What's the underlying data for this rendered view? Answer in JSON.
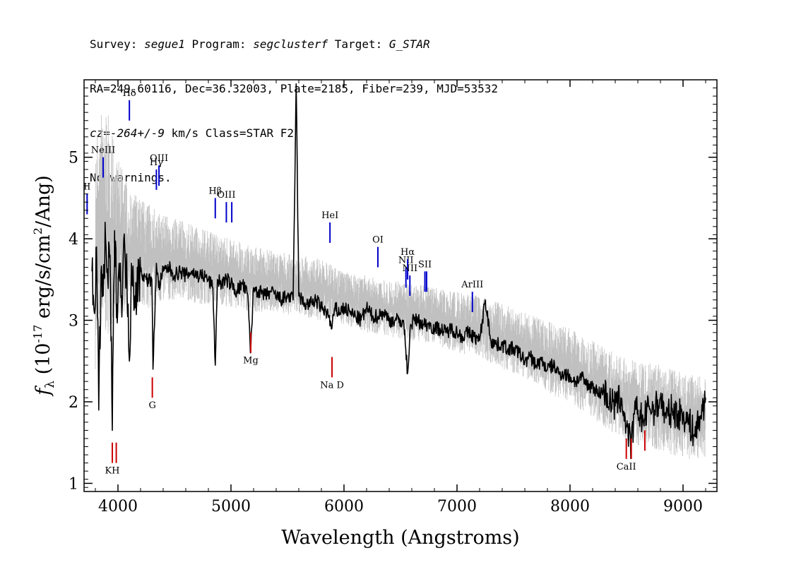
{
  "header": {
    "survey_label": "Survey: ",
    "survey_value": "segue1",
    "program_label": " Program: ",
    "program_value": "segclusterf",
    "target_label": " Target: ",
    "target_value": "G_STAR",
    "line2": "RA=249.60116, Dec=36.32003, Plate=2185, Fiber=239, MJD=53532",
    "cz_label": "cz=",
    "cz_value": "-264+/-9",
    "cz_rest": " km/s Class=STAR F2",
    "line4": "No warnings."
  },
  "chart_data": {
    "type": "line",
    "xlabel": "Wavelength (Angstroms)",
    "ylabel_prefix": "f",
    "ylabel_sub": "λ",
    "ylabel_main": " (10",
    "ylabel_exp": "-17",
    "ylabel_mid": " erg/s/cm",
    "ylabel_exp2": "2",
    "ylabel_end": "/Ang)",
    "xlim": [
      3700,
      9300
    ],
    "ylim": [
      0.9,
      5.95
    ],
    "xticks": [
      4000,
      5000,
      6000,
      7000,
      8000,
      9000
    ],
    "yticks": [
      1,
      2,
      3,
      4,
      5
    ],
    "series": [
      {
        "role": "error_band",
        "color": "#c0c0c0",
        "x": [
          3800,
          3850,
          3900,
          3950,
          4000,
          4100,
          4200,
          4300,
          4400,
          4500,
          4600,
          4700,
          4800,
          4900,
          5000,
          5200,
          5400,
          5600,
          5800,
          6000,
          6200,
          6400,
          6600,
          6800,
          7000,
          7200,
          7400,
          7600,
          7800,
          8000,
          8200,
          8400,
          8600,
          8800,
          9000,
          9200
        ],
        "y_low": [
          2.4,
          2.6,
          2.8,
          2.9,
          3.0,
          3.1,
          3.15,
          3.15,
          3.2,
          3.25,
          3.25,
          3.2,
          3.2,
          3.2,
          3.15,
          3.1,
          3.1,
          3.05,
          3.0,
          2.95,
          2.85,
          2.8,
          2.75,
          2.7,
          2.6,
          2.55,
          2.4,
          2.3,
          2.1,
          2.0,
          1.8,
          1.6,
          1.45,
          1.4,
          1.3,
          1.3
        ],
        "y_high": [
          5.2,
          5.6,
          5.6,
          5.3,
          5.0,
          4.6,
          4.5,
          4.4,
          4.3,
          4.25,
          4.2,
          4.15,
          4.1,
          4.05,
          4.0,
          3.9,
          3.85,
          3.8,
          3.75,
          3.6,
          3.55,
          3.5,
          3.45,
          3.4,
          3.35,
          3.3,
          3.2,
          3.1,
          3.0,
          2.9,
          2.75,
          2.6,
          2.5,
          2.45,
          2.35,
          2.3
        ]
      },
      {
        "role": "flux",
        "color": "#000000",
        "x": [
          3770,
          3790,
          3810,
          3830,
          3850,
          3870,
          3890,
          3910,
          3930,
          3950,
          3970,
          3990,
          4010,
          4030,
          4060,
          4090,
          4101,
          4120,
          4150,
          4200,
          4250,
          4300,
          4310,
          4340,
          4360,
          4400,
          4450,
          4500,
          4550,
          4600,
          4650,
          4700,
          4750,
          4800,
          4840,
          4861,
          4880,
          4920,
          4960,
          5000,
          5050,
          5100,
          5150,
          5172,
          5200,
          5250,
          5300,
          5350,
          5400,
          5450,
          5500,
          5550,
          5577,
          5600,
          5650,
          5700,
          5750,
          5800,
          5850,
          5893,
          5920,
          5950,
          6000,
          6050,
          6100,
          6150,
          6200,
          6250,
          6300,
          6350,
          6400,
          6450,
          6500,
          6530,
          6563,
          6590,
          6620,
          6650,
          6700,
          6750,
          6800,
          6850,
          6900,
          6950,
          7000,
          7050,
          7100,
          7150,
          7200,
          7250,
          7300,
          7350,
          7400,
          7450,
          7500,
          7550,
          7600,
          7650,
          7700,
          7750,
          7800,
          7850,
          7900,
          7950,
          8000,
          8050,
          8100,
          8150,
          8200,
          8250,
          8300,
          8350,
          8400,
          8450,
          8500,
          8542,
          8570,
          8600,
          8650,
          8700,
          8750,
          8800,
          8850,
          8900,
          8950,
          9000,
          9050,
          9100,
          9150,
          9200
        ],
        "y": [
          3.6,
          3.1,
          3.9,
          1.9,
          3.6,
          3.3,
          4.0,
          3.5,
          3.8,
          1.65,
          4.1,
          3.2,
          3.7,
          3.3,
          3.9,
          3.2,
          2.5,
          3.7,
          3.3,
          3.6,
          3.5,
          3.5,
          2.4,
          3.7,
          3.4,
          3.6,
          3.65,
          3.55,
          3.6,
          3.55,
          3.6,
          3.55,
          3.55,
          3.5,
          3.4,
          2.45,
          3.5,
          3.45,
          3.5,
          3.45,
          3.35,
          3.45,
          3.3,
          2.6,
          3.4,
          3.35,
          3.3,
          3.35,
          3.3,
          3.25,
          3.3,
          3.25,
          5.9,
          3.3,
          3.2,
          3.2,
          3.25,
          3.15,
          3.1,
          2.9,
          3.15,
          3.1,
          3.15,
          3.1,
          3.05,
          3.0,
          3.15,
          3.05,
          3.05,
          3.1,
          3.0,
          3.0,
          3.0,
          2.95,
          2.35,
          2.95,
          3.0,
          3.0,
          2.95,
          2.95,
          2.9,
          2.9,
          2.85,
          2.9,
          2.85,
          2.8,
          2.85,
          2.8,
          2.75,
          3.25,
          2.75,
          2.7,
          2.7,
          2.65,
          2.65,
          2.6,
          2.5,
          2.55,
          2.45,
          2.5,
          2.4,
          2.45,
          2.35,
          2.35,
          2.3,
          2.25,
          2.3,
          2.2,
          2.2,
          2.1,
          2.15,
          2.0,
          1.95,
          2.05,
          1.7,
          1.45,
          1.85,
          1.9,
          1.75,
          1.95,
          1.9,
          2.05,
          1.8,
          1.9,
          1.85,
          1.85,
          1.75,
          1.6,
          1.8,
          2.05
        ]
      }
    ],
    "lines": [
      {
        "label": "Hδ",
        "x": 4101,
        "y_bottom": 5.45,
        "y_top": 5.7,
        "color": "#0000cc"
      },
      {
        "label": "NeIII",
        "x": 3869,
        "y_bottom": 4.75,
        "y_top": 5.0,
        "color": "#0000cc"
      },
      {
        "label": "Hγ",
        "x": 4340,
        "y_bottom": 4.6,
        "y_top": 4.85,
        "color": "#0000cc"
      },
      {
        "label": "OIII",
        "x": 4363,
        "y_bottom": 4.65,
        "y_top": 4.9,
        "color": "#0000cc"
      },
      {
        "label": "II",
        "x": 3727,
        "y_bottom": 4.3,
        "y_top": 4.55,
        "color": "#0000cc"
      },
      {
        "label": "Hβ",
        "x": 4861,
        "y_bottom": 4.25,
        "y_top": 4.5,
        "color": "#0000cc"
      },
      {
        "label": "OIII",
        "x": 4959,
        "y_bottom": 4.2,
        "y_top": 4.45,
        "color": "#0000cc"
      },
      {
        "label": "",
        "x": 5007,
        "y_bottom": 4.2,
        "y_top": 4.45,
        "color": "#0000cc"
      },
      {
        "label": "HeI",
        "x": 5876,
        "y_bottom": 3.95,
        "y_top": 4.2,
        "color": "#0000cc"
      },
      {
        "label": "OI",
        "x": 6300,
        "y_bottom": 3.65,
        "y_top": 3.9,
        "color": "#0000cc"
      },
      {
        "label": "NII",
        "x": 6548,
        "y_bottom": 3.4,
        "y_top": 3.65,
        "color": "#0000cc"
      },
      {
        "label": "Hα",
        "x": 6563,
        "y_bottom": 3.5,
        "y_top": 3.75,
        "color": "#0000cc"
      },
      {
        "label": "NII",
        "x": 6583,
        "y_bottom": 3.3,
        "y_top": 3.55,
        "color": "#0000cc"
      },
      {
        "label": "SII",
        "x": 6716,
        "y_bottom": 3.35,
        "y_top": 3.6,
        "color": "#0000cc"
      },
      {
        "label": "",
        "x": 6731,
        "y_bottom": 3.35,
        "y_top": 3.6,
        "color": "#0000cc"
      },
      {
        "label": "ArIII",
        "x": 7136,
        "y_bottom": 3.1,
        "y_top": 3.35,
        "color": "#0000cc"
      },
      {
        "label": "G",
        "x": 4304,
        "y_bottom": 2.05,
        "y_top": 2.3,
        "color": "#cc0000"
      },
      {
        "label": "Mg",
        "x": 5175,
        "y_bottom": 2.6,
        "y_top": 2.85,
        "color": "#cc0000"
      },
      {
        "label": "Na D",
        "x": 5894,
        "y_bottom": 2.3,
        "y_top": 2.55,
        "color": "#cc0000"
      },
      {
        "label": "KH",
        "x": 3950,
        "y_bottom": 1.25,
        "y_top": 1.5,
        "color": "#cc0000"
      },
      {
        "label": "",
        "x": 3985,
        "y_bottom": 1.25,
        "y_top": 1.5,
        "color": "#cc0000"
      },
      {
        "label": "CaII",
        "x": 8498,
        "y_bottom": 1.3,
        "y_top": 1.55,
        "color": "#cc0000"
      },
      {
        "label": "",
        "x": 8542,
        "y_bottom": 1.3,
        "y_top": 1.55,
        "color": "#cc0000"
      },
      {
        "label": "",
        "x": 8662,
        "y_bottom": 1.4,
        "y_top": 1.65,
        "color": "#cc0000"
      }
    ]
  }
}
